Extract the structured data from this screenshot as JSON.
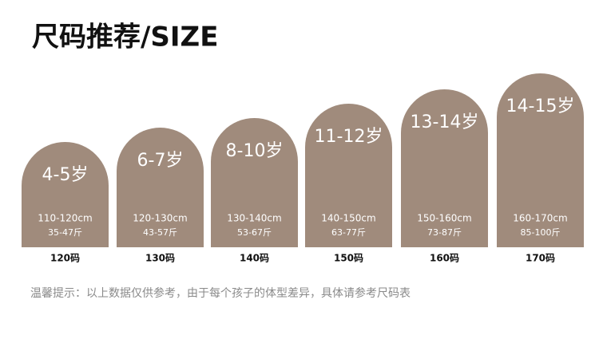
{
  "header": {
    "title": "尺码推荐/SIZE"
  },
  "cards": [
    {
      "age": "4-5岁",
      "height": "110-120cm",
      "weight": "35-47斤",
      "size": "120码"
    },
    {
      "age": "6-7岁",
      "height": "120-130cm",
      "weight": "43-57斤",
      "size": "130码"
    },
    {
      "age": "8-10岁",
      "height": "130-140cm",
      "weight": "53-67斤",
      "size": "140码"
    },
    {
      "age": "11-12岁",
      "height": "140-150cm",
      "weight": "63-77斤",
      "size": "150码"
    },
    {
      "age": "13-14岁",
      "height": "150-160cm",
      "weight": "73-87斤",
      "size": "160码"
    },
    {
      "age": "14-15岁",
      "height": "160-170cm",
      "weight": "85-100斤",
      "size": "170码"
    }
  ],
  "footnote": "温馨提示：以上数据仅供参考，由于每个孩子的体型差异，具体请参考尺码表"
}
